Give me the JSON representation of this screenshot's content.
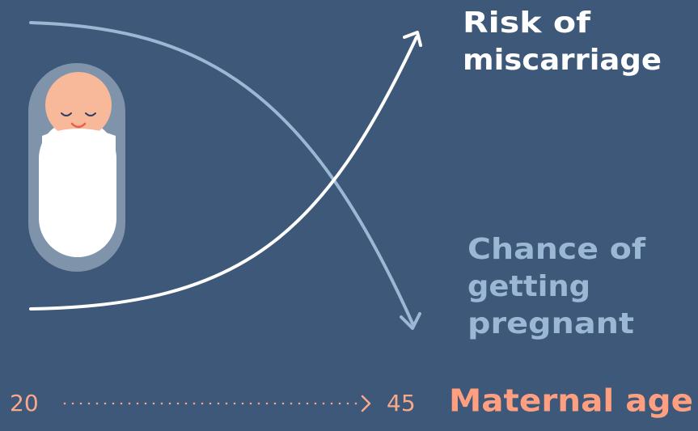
{
  "curves": {
    "rising": {
      "label_lines": [
        "Risk of",
        "miscarriage"
      ]
    },
    "falling": {
      "label_lines": [
        "Chance of",
        "getting",
        "pregnant"
      ]
    }
  },
  "axis": {
    "start": "20",
    "end": "45",
    "title": "Maternal age"
  }
}
